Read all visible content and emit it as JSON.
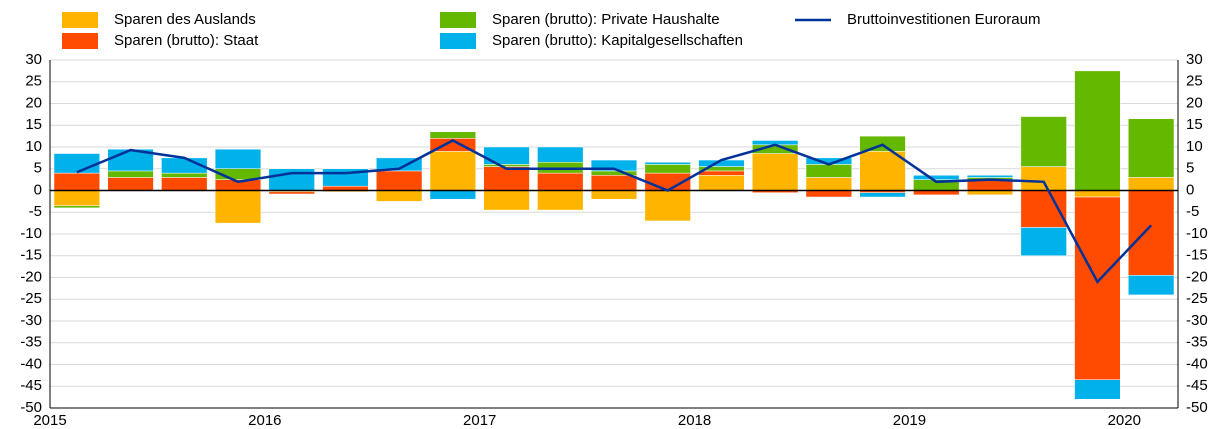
{
  "chart_data": {
    "type": "bar",
    "stacked": true,
    "categories": [
      "2015",
      null,
      null,
      null,
      "2016",
      null,
      null,
      null,
      "2017",
      null,
      null,
      null,
      "2018",
      null,
      null,
      null,
      "2019",
      null,
      null,
      null,
      "2020"
    ],
    "series": [
      {
        "name": "Sparen des Auslands",
        "color": "#ffb400",
        "values": [
          -3.5,
          0,
          0,
          -7.5,
          -0.3,
          -0.3,
          -2.5,
          9,
          -4.5,
          -4.5,
          -2,
          -7,
          3.5,
          8.5,
          3,
          9,
          0,
          -1,
          5.5,
          -1.5,
          3
        ]
      },
      {
        "name": "Sparen (brutto): Staat",
        "color": "#ff4b00",
        "values": [
          4,
          3,
          3,
          2.5,
          -0.5,
          1,
          4.5,
          3,
          5.5,
          4,
          3.5,
          4,
          1,
          -0.5,
          -1.5,
          -0.5,
          -1,
          2.5,
          -8.5,
          -42,
          -19.5
        ]
      },
      {
        "name": "Sparen (brutto): Private Haushalte",
        "color": "#65b800",
        "values": [
          -0.5,
          1.5,
          1,
          2.5,
          0,
          0,
          0,
          1.5,
          0.5,
          2.5,
          1,
          2,
          1,
          2,
          3,
          3.5,
          2.5,
          0.5,
          11.5,
          27.5,
          13.5
        ]
      },
      {
        "name": "Sparen (brutto): Kapitalgesellschaften",
        "color": "#00b1ea",
        "values": [
          4.5,
          5,
          3.5,
          4.5,
          5,
          4,
          3,
          -2,
          4,
          3.5,
          2.5,
          0.5,
          1.5,
          1,
          1.5,
          -1,
          1,
          0.5,
          -6.5,
          -4.5,
          -4.5
        ]
      },
      {
        "name": "Bruttoinvestitionen Euroraum",
        "color": "#003299",
        "type": "line",
        "values": [
          4.2,
          9.3,
          7.5,
          2,
          4,
          4,
          5,
          11.5,
          5,
          5,
          5,
          0,
          7,
          10.5,
          6,
          10.5,
          2,
          2.5,
          2,
          -21,
          -8
        ]
      }
    ],
    "ylim": [
      -50,
      30
    ],
    "yticks": [
      -50,
      -45,
      -40,
      -35,
      -30,
      -25,
      -20,
      -15,
      -10,
      -5,
      0,
      5,
      10,
      15,
      20,
      25,
      30
    ],
    "y2lim": [
      -50,
      30
    ],
    "y2ticks": [
      -50,
      -45,
      -40,
      -35,
      -30,
      -25,
      -20,
      -15,
      -10,
      -5,
      0,
      5,
      10,
      15,
      20,
      25,
      30
    ],
    "grid": true,
    "legend": "top"
  }
}
